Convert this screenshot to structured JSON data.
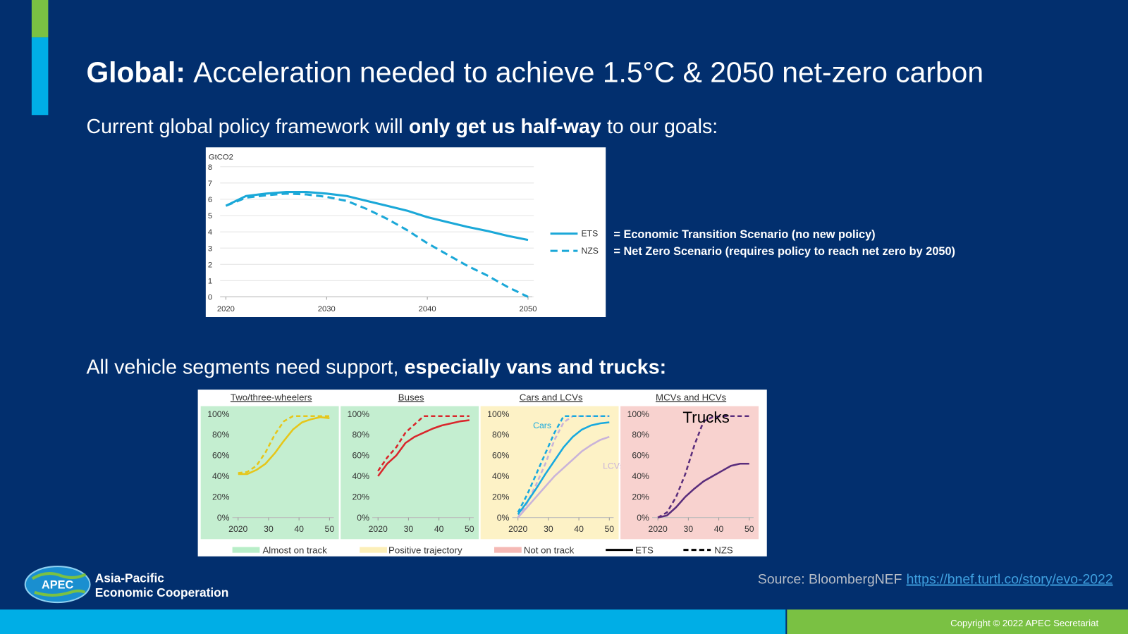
{
  "header": {
    "title_bold": "Global:",
    "title": "Acceleration needed to achieve 1.5°C & 2050 net-zero carbon"
  },
  "subtitle_1": {
    "text": "Current global policy framework will",
    "bold": "only get us half-way",
    "end": "to our goals:"
  },
  "subtitle_2": {
    "text": "All vehicle segments need support,",
    "bold": "especially vans and trucks:"
  },
  "chart_data": [
    {
      "type": "line",
      "y_label": "GtCO2",
      "x": [
        2020,
        2022,
        2024,
        2026,
        2028,
        2030,
        2032,
        2034,
        2036,
        2038,
        2040,
        2042,
        2044,
        2046,
        2048,
        2050
      ],
      "xlim": [
        2020,
        2050
      ],
      "ylim": [
        0,
        8
      ],
      "xticks": [
        2020,
        2030,
        2040,
        2050
      ],
      "yticks": [
        0,
        1,
        2,
        3,
        4,
        5,
        6,
        7,
        8
      ],
      "grid": true,
      "series": [
        {
          "name": "ETS",
          "color": "#1ba8d8",
          "style": "solid",
          "description": "= Economic Transition Scenario (no new policy)",
          "values": [
            5.6,
            6.2,
            6.35,
            6.45,
            6.45,
            6.35,
            6.2,
            5.9,
            5.6,
            5.3,
            4.9,
            4.6,
            4.3,
            4.05,
            3.75,
            3.5
          ]
        },
        {
          "name": "NZS",
          "color": "#1ba8d8",
          "style": "dashed",
          "description": "= Net Zero Scenario (requires policy to reach net zero by 2050)",
          "values": [
            5.6,
            6.1,
            6.25,
            6.35,
            6.3,
            6.15,
            5.9,
            5.4,
            4.8,
            4.1,
            3.3,
            2.6,
            1.9,
            1.3,
            0.6,
            0
          ]
        }
      ]
    },
    {
      "type": "line",
      "title": "Two/three-wheelers",
      "background": "#c4eed0",
      "x": [
        2020,
        2023,
        2026,
        2029,
        2032,
        2035,
        2038,
        2041,
        2044,
        2047,
        2050
      ],
      "xlim": [
        2020,
        2050
      ],
      "ylim": [
        0,
        100
      ],
      "xticks": [
        2020,
        {
          "value": 2030,
          "label": "30"
        },
        {
          "value": 2040,
          "label": "40"
        },
        {
          "value": 2050,
          "label": "50"
        }
      ],
      "yticks": [
        {
          "value": 0,
          "label": "0%"
        },
        {
          "value": 20,
          "label": "20%"
        },
        {
          "value": 40,
          "label": "40%"
        },
        {
          "value": 60,
          "label": "60%"
        },
        {
          "value": 80,
          "label": "80%"
        },
        {
          "value": 100,
          "label": "100%"
        }
      ],
      "series": [
        {
          "color": "#e6c619",
          "style": "solid",
          "values": [
            42,
            42,
            46,
            52,
            62,
            74,
            85,
            92,
            95,
            97,
            96
          ]
        },
        {
          "color": "#e6c619",
          "style": "dashed",
          "values": [
            43,
            44,
            50,
            63,
            80,
            93,
            98,
            98,
            98,
            98,
            98
          ]
        }
      ]
    },
    {
      "type": "line",
      "title": "Buses",
      "background": "#c4eed0",
      "x": [
        2020,
        2023,
        2026,
        2029,
        2032,
        2035,
        2038,
        2041,
        2044,
        2047,
        2050
      ],
      "xlim": [
        2020,
        2050
      ],
      "ylim": [
        0,
        100
      ],
      "xticks": [
        2020,
        {
          "value": 2030,
          "label": "30"
        },
        {
          "value": 2040,
          "label": "40"
        },
        {
          "value": 2050,
          "label": "50"
        }
      ],
      "yticks": [
        {
          "value": 0,
          "label": "0%"
        },
        {
          "value": 20,
          "label": "20%"
        },
        {
          "value": 40,
          "label": "40%"
        },
        {
          "value": 60,
          "label": "60%"
        },
        {
          "value": 80,
          "label": "80%"
        },
        {
          "value": 100,
          "label": "100%"
        }
      ],
      "series": [
        {
          "color": "#d9262b",
          "style": "solid",
          "values": [
            40,
            52,
            60,
            72,
            78,
            82,
            86,
            89,
            91,
            93,
            94
          ]
        },
        {
          "color": "#d9262b",
          "style": "dashed",
          "values": [
            45,
            58,
            68,
            82,
            90,
            98,
            98,
            98,
            98,
            98,
            98
          ]
        }
      ]
    },
    {
      "type": "line",
      "title": "Cars and LCVs",
      "background": "#fdf2c6",
      "annotations": [
        "Cars",
        "LCVs"
      ],
      "x": [
        2020,
        2023,
        2026,
        2029,
        2032,
        2035,
        2038,
        2041,
        2044,
        2047,
        2050
      ],
      "xlim": [
        2020,
        2050
      ],
      "ylim": [
        0,
        100
      ],
      "xticks": [
        2020,
        {
          "value": 2030,
          "label": "30"
        },
        {
          "value": 2040,
          "label": "40"
        },
        {
          "value": 2050,
          "label": "50"
        }
      ],
      "yticks": [
        {
          "value": 0,
          "label": "0%"
        },
        {
          "value": 20,
          "label": "20%"
        },
        {
          "value": 40,
          "label": "40%"
        },
        {
          "value": 60,
          "label": "60%"
        },
        {
          "value": 80,
          "label": "80%"
        },
        {
          "value": 100,
          "label": "100%"
        }
      ],
      "series": [
        {
          "color": "#c9b3d9",
          "style": "solid",
          "values": [
            0,
            10,
            20,
            30,
            40,
            48,
            56,
            64,
            70,
            75,
            78
          ]
        },
        {
          "color": "#c9b3d9",
          "style": "dashed",
          "values": [
            0,
            14,
            32,
            52,
            75,
            92,
            98,
            98,
            98,
            98,
            98
          ]
        },
        {
          "color": "#17a9df",
          "style": "solid",
          "values": [
            3,
            15,
            28,
            42,
            55,
            68,
            78,
            85,
            89,
            91,
            92
          ]
        },
        {
          "color": "#17a9df",
          "style": "dashed",
          "values": [
            5,
            22,
            42,
            62,
            82,
            98,
            98,
            98,
            98,
            98,
            98
          ]
        }
      ]
    },
    {
      "type": "line",
      "title": "MCVs and HCVs",
      "background": "#f8d2cf",
      "annotations": [
        "Trucks"
      ],
      "x": [
        2020,
        2023,
        2026,
        2029,
        2032,
        2035,
        2038,
        2041,
        2044,
        2047,
        2050
      ],
      "xlim": [
        2020,
        2050
      ],
      "ylim": [
        0,
        100
      ],
      "xticks": [
        2020,
        {
          "value": 2030,
          "label": "30"
        },
        {
          "value": 2040,
          "label": "40"
        },
        {
          "value": 2050,
          "label": "50"
        }
      ],
      "yticks": [
        {
          "value": 0,
          "label": "0%"
        },
        {
          "value": 20,
          "label": "20%"
        },
        {
          "value": 40,
          "label": "40%"
        },
        {
          "value": 60,
          "label": "60%"
        },
        {
          "value": 80,
          "label": "80%"
        },
        {
          "value": 100,
          "label": "100%"
        }
      ],
      "series": [
        {
          "color": "#5a2d7c",
          "style": "solid",
          "values": [
            0,
            2,
            10,
            20,
            28,
            35,
            40,
            45,
            50,
            52,
            52
          ]
        },
        {
          "color": "#5a2d7c",
          "style": "dashed",
          "values": [
            0,
            5,
            20,
            42,
            70,
            93,
            97,
            98,
            98,
            98,
            98
          ]
        }
      ]
    }
  ],
  "legend": [
    {
      "label": "Almost on track",
      "color": "#b8eec8"
    },
    {
      "label": "Positive trajectory",
      "color": "#fcefb8"
    },
    {
      "label": "Not on track",
      "color": "#f5b9b5"
    },
    {
      "label": "ETS",
      "style": "solid",
      "color": "#000000"
    },
    {
      "label": "NZS",
      "style": "dashed",
      "color": "#000000"
    }
  ],
  "logo": {
    "badge": "APEC",
    "line_1": "Asia-Pacific",
    "line_2": "Economic Cooperation"
  },
  "source": {
    "text": "Source: BloombergNEF",
    "link": "https://bnef.turtl.co/story/evo-2022"
  },
  "copyright": "Copyright © 2022 APEC Secretariat"
}
